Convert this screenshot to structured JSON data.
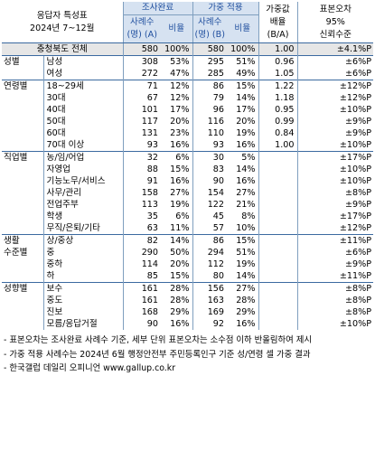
{
  "header": {
    "title_line1": "응답자 특성표",
    "title_line2": "2024년 7~12월",
    "col_unweighted": "조사완료",
    "col_weighted": "가중 적용",
    "col_weightmult_line1": "가중값",
    "col_weightmult_line2": "배율",
    "col_weightmult_line3": "(B/A)",
    "col_moe_line1": "표본오차",
    "col_moe_line2": "95%",
    "col_moe_line3": "신뢰수준",
    "sub_cases_a_line1": "사례수",
    "sub_cases_a_line2": "(명) (A)",
    "sub_ratio": "비율",
    "sub_cases_b_line1": "사례수",
    "sub_cases_b_line2": "(명) (B)"
  },
  "total": {
    "label": "충청북도 전체",
    "n_a": "580",
    "pct_a": "100%",
    "n_b": "580",
    "pct_b": "100%",
    "mult": "1.00",
    "moe": "±4.1%P"
  },
  "groups": [
    {
      "name_line1": "성별",
      "name_line2": "",
      "rows": [
        {
          "label": "남성",
          "n_a": "308",
          "pct_a": "53%",
          "n_b": "295",
          "pct_b": "51%",
          "mult": "0.96",
          "moe": "±6%P"
        },
        {
          "label": "여성",
          "n_a": "272",
          "pct_a": "47%",
          "n_b": "285",
          "pct_b": "49%",
          "mult": "1.05",
          "moe": "±6%P"
        }
      ]
    },
    {
      "name_line1": "연령별",
      "name_line2": "",
      "rows": [
        {
          "label": "18~29세",
          "n_a": "71",
          "pct_a": "12%",
          "n_b": "86",
          "pct_b": "15%",
          "mult": "1.22",
          "moe": "±12%P"
        },
        {
          "label": "30대",
          "n_a": "67",
          "pct_a": "12%",
          "n_b": "79",
          "pct_b": "14%",
          "mult": "1.18",
          "moe": "±12%P"
        },
        {
          "label": "40대",
          "n_a": "101",
          "pct_a": "17%",
          "n_b": "96",
          "pct_b": "17%",
          "mult": "0.95",
          "moe": "±10%P"
        },
        {
          "label": "50대",
          "n_a": "117",
          "pct_a": "20%",
          "n_b": "116",
          "pct_b": "20%",
          "mult": "0.99",
          "moe": "±9%P"
        },
        {
          "label": "60대",
          "n_a": "131",
          "pct_a": "23%",
          "n_b": "110",
          "pct_b": "19%",
          "mult": "0.84",
          "moe": "±9%P"
        },
        {
          "label": "70대 이상",
          "n_a": "93",
          "pct_a": "16%",
          "n_b": "93",
          "pct_b": "16%",
          "mult": "1.00",
          "moe": "±10%P"
        }
      ]
    },
    {
      "name_line1": "직업별",
      "name_line2": "",
      "rows": [
        {
          "label": "농/임/어업",
          "n_a": "32",
          "pct_a": "6%",
          "n_b": "30",
          "pct_b": "5%",
          "mult": "",
          "moe": "±17%P"
        },
        {
          "label": "자영업",
          "n_a": "88",
          "pct_a": "15%",
          "n_b": "83",
          "pct_b": "14%",
          "mult": "",
          "moe": "±10%P"
        },
        {
          "label": "기능노무/서비스",
          "n_a": "91",
          "pct_a": "16%",
          "n_b": "90",
          "pct_b": "16%",
          "mult": "",
          "moe": "±10%P"
        },
        {
          "label": "사무/관리",
          "n_a": "158",
          "pct_a": "27%",
          "n_b": "154",
          "pct_b": "27%",
          "mult": "",
          "moe": "±8%P"
        },
        {
          "label": "전업주부",
          "n_a": "113",
          "pct_a": "19%",
          "n_b": "122",
          "pct_b": "21%",
          "mult": "",
          "moe": "±9%P"
        },
        {
          "label": "학생",
          "n_a": "35",
          "pct_a": "6%",
          "n_b": "45",
          "pct_b": "8%",
          "mult": "",
          "moe": "±17%P"
        },
        {
          "label": "무직/은퇴/기타",
          "n_a": "63",
          "pct_a": "11%",
          "n_b": "57",
          "pct_b": "10%",
          "mult": "",
          "moe": "±12%P"
        }
      ]
    },
    {
      "name_line1": "생활",
      "name_line2": "수준별",
      "rows": [
        {
          "label": "상/중상",
          "n_a": "82",
          "pct_a": "14%",
          "n_b": "86",
          "pct_b": "15%",
          "mult": "",
          "moe": "±11%P"
        },
        {
          "label": "중",
          "n_a": "290",
          "pct_a": "50%",
          "n_b": "294",
          "pct_b": "51%",
          "mult": "",
          "moe": "±6%P"
        },
        {
          "label": "중하",
          "n_a": "114",
          "pct_a": "20%",
          "n_b": "112",
          "pct_b": "19%",
          "mult": "",
          "moe": "±9%P"
        },
        {
          "label": "하",
          "n_a": "85",
          "pct_a": "15%",
          "n_b": "80",
          "pct_b": "14%",
          "mult": "",
          "moe": "±11%P"
        }
      ]
    },
    {
      "name_line1": "성향별",
      "name_line2": "",
      "rows": [
        {
          "label": "보수",
          "n_a": "161",
          "pct_a": "28%",
          "n_b": "156",
          "pct_b": "27%",
          "mult": "",
          "moe": "±8%P"
        },
        {
          "label": "중도",
          "n_a": "161",
          "pct_a": "28%",
          "n_b": "163",
          "pct_b": "28%",
          "mult": "",
          "moe": "±8%P"
        },
        {
          "label": "진보",
          "n_a": "168",
          "pct_a": "29%",
          "n_b": "169",
          "pct_b": "29%",
          "mult": "",
          "moe": "±8%P"
        },
        {
          "label": "모름/응답거절",
          "n_a": "90",
          "pct_a": "16%",
          "n_b": "92",
          "pct_b": "16%",
          "mult": "",
          "moe": "±10%P"
        }
      ]
    }
  ],
  "notes": [
    "- 표본오차는 조사완료 사례수 기준, 세부 단위 표본오차는 소수점 이하 반올림하여 제시",
    "- 가중 적용 사례수는 2024년 6월 행정안전부 주민등록인구 기준 성/연령 셀 가중 결과",
    "- 한국갤럽 데일리 오피니언 www.gallup.co.kr"
  ]
}
